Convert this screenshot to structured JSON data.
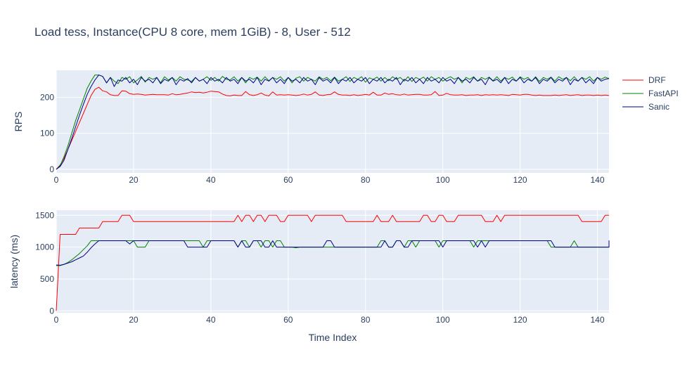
{
  "chart_data": {
    "type": "line",
    "title": "Load tess, Instance(CPU 8 core, mem 1GiB) - 8, User - 512",
    "legend": {
      "placement": "right",
      "entries": [
        "DRF",
        "FastAPI",
        "Sanic"
      ]
    },
    "colors": {
      "DRF": "#ff0000",
      "FastAPI": "#008000",
      "Sanic": "#00008b",
      "plot_bg": "#e5ecf6",
      "grid": "#ffffff",
      "text": "#2a3f5f"
    },
    "xlabel": "Time Index",
    "x_range": [
      0,
      143
    ],
    "x_ticks": [
      "0",
      "20",
      "40",
      "60",
      "80",
      "100",
      "120",
      "140"
    ],
    "subplots": [
      {
        "ylabel": "RPS",
        "y_range": [
          -10,
          275
        ],
        "y_ticks": [
          "0",
          "100",
          "200"
        ],
        "series": [
          {
            "name": "DRF",
            "values": [
              0,
              12,
              30,
              55,
              80,
              105,
              130,
              155,
              180,
              205,
              222,
              228,
              218,
              215,
              207,
              205,
              205,
              218,
              217,
              210,
              208,
              209,
              208,
              206,
              207,
              208,
              207,
              207,
              207,
              206,
              210,
              207,
              208,
              210,
              212,
              215,
              213,
              214,
              212,
              214,
              217,
              216,
              215,
              209,
              205,
              204,
              206,
              205,
              205,
              216,
              207,
              205,
              207,
              212,
              206,
              204,
              215,
              206,
              207,
              206,
              207,
              206,
              205,
              206,
              209,
              206,
              208,
              215,
              206,
              205,
              207,
              208,
              215,
              208,
              206,
              206,
              205,
              207,
              205,
              206,
              208,
              206,
              214,
              206,
              206,
              212,
              208,
              210,
              207,
              206,
              209,
              206,
              207,
              208,
              208,
              206,
              206,
              207,
              216,
              205,
              206,
              211,
              207,
              206,
              206,
              207,
              205,
              206,
              206,
              207,
              205,
              207,
              206,
              207,
              206,
              207,
              206,
              205,
              208,
              207,
              206,
              208,
              208,
              206,
              205,
              206,
              205,
              205,
              205,
              206,
              205,
              206,
              207,
              205,
              206,
              207,
              205,
              206,
              206,
              205,
              206,
              205,
              206,
              205
            ]
          },
          {
            "name": "FastAPI",
            "values": [
              0,
              10,
              35,
              65,
              100,
              135,
              165,
              195,
              225,
              245,
              262,
              262,
              258,
              240,
              255,
              245,
              238,
              255,
              250,
              257,
              240,
              248,
              258,
              242,
              255,
              250,
              255,
              240,
              257,
              248,
              255,
              245,
              257,
              250,
              248,
              244,
              255,
              245,
              250,
              257,
              247,
              255,
              245,
              258,
              250,
              248,
              257,
              245,
              255,
              240,
              255,
              250,
              256,
              245,
              257,
              246,
              255,
              250,
              257,
              245,
              255,
              240,
              253,
              257,
              245,
              255,
              250,
              245,
              257,
              250,
              255,
              246,
              256,
              245,
              250,
              257,
              244,
              255,
              250,
              257,
              242,
              254,
              250,
              256,
              245,
              255,
              246,
              257,
              250,
              255,
              245,
              257,
              244,
              255,
              250,
              256,
              245,
              257,
              250,
              255,
              245,
              252,
              257,
              250,
              255,
              240,
              255,
              250,
              257,
              245,
              255,
              250,
              256,
              246,
              257,
              245,
              255,
              250,
              256,
              245,
              257,
              250,
              255,
              245,
              257,
              244,
              255,
              250,
              256,
              245,
              257,
              250,
              255,
              246,
              257,
              245,
              255,
              250,
              257,
              245,
              255,
              250,
              256,
              252
            ]
          },
          {
            "name": "Sanic",
            "values": [
              0,
              8,
              25,
              55,
              85,
              118,
              150,
              180,
              208,
              230,
              248,
              262,
              258,
              240,
              255,
              230,
              248,
              245,
              255,
              240,
              250,
              235,
              255,
              245,
              250,
              240,
              255,
              238,
              250,
              245,
              255,
              235,
              250,
              245,
              252,
              240,
              255,
              245,
              250,
              238,
              255,
              245,
              250,
              240,
              255,
              245,
              250,
              238,
              255,
              245,
              250,
              240,
              255,
              235,
              250,
              245,
              255,
              240,
              250,
              238,
              255,
              245,
              250,
              240,
              255,
              245,
              250,
              235,
              255,
              245,
              250,
              240,
              255,
              238,
              250,
              245,
              255,
              240,
              250,
              245,
              255,
              238,
              250,
              245,
              255,
              240,
              250,
              245,
              255,
              235,
              250,
              245,
              255,
              240,
              250,
              238,
              255,
              245,
              250,
              240,
              255,
              245,
              250,
              238,
              255,
              245,
              250,
              240,
              255,
              245,
              250,
              235,
              255,
              245,
              250,
              240,
              255,
              238,
              250,
              245,
              255,
              240,
              250,
              245,
              255,
              238,
              250,
              245,
              255,
              240,
              250,
              245,
              255,
              235,
              250,
              245,
              255,
              240,
              250,
              238,
              255,
              245,
              250,
              252
            ]
          }
        ]
      },
      {
        "ylabel": "latency (ms)",
        "y_range": [
          -30,
          1580
        ],
        "y_ticks": [
          "0",
          "500",
          "1000",
          "1500"
        ],
        "series": [
          {
            "name": "DRF",
            "values": [
              0,
              1200,
              1200,
              1200,
              1200,
              1200,
              1300,
              1300,
              1300,
              1300,
              1300,
              1300,
              1400,
              1400,
              1400,
              1400,
              1400,
              1500,
              1500,
              1500,
              1400,
              1400,
              1400,
              1400,
              1400,
              1400,
              1400,
              1400,
              1400,
              1400,
              1400,
              1400,
              1400,
              1400,
              1400,
              1400,
              1400,
              1400,
              1400,
              1400,
              1400,
              1400,
              1400,
              1400,
              1400,
              1400,
              1400,
              1500,
              1400,
              1500,
              1500,
              1400,
              1500,
              1500,
              1400,
              1500,
              1500,
              1500,
              1400,
              1400,
              1500,
              1500,
              1500,
              1500,
              1500,
              1500,
              1400,
              1500,
              1500,
              1500,
              1500,
              1500,
              1500,
              1500,
              1500,
              1400,
              1400,
              1400,
              1400,
              1400,
              1400,
              1400,
              1400,
              1500,
              1400,
              1400,
              1400,
              1500,
              1400,
              1400,
              1400,
              1400,
              1400,
              1400,
              1400,
              1500,
              1500,
              1400,
              1400,
              1500,
              1500,
              1400,
              1400,
              1400,
              1500,
              1500,
              1500,
              1500,
              1500,
              1500,
              1500,
              1400,
              1400,
              1400,
              1500,
              1400,
              1500,
              1500,
              1500,
              1500,
              1500,
              1500,
              1500,
              1500,
              1500,
              1500,
              1500,
              1500,
              1500,
              1500,
              1500,
              1500,
              1500,
              1500,
              1500,
              1500,
              1400,
              1400,
              1400,
              1400,
              1400,
              1400,
              1500,
              1500,
              1500,
              1500
            ]
          },
          {
            "name": "FastAPI",
            "values": [
              710,
              710,
              730,
              760,
              800,
              850,
              900,
              960,
              1020,
              1100,
              1100,
              1100,
              1100,
              1100,
              1100,
              1100,
              1100,
              1100,
              1100,
              1100,
              1100,
              1000,
              1000,
              1000,
              1100,
              1100,
              1100,
              1100,
              1100,
              1100,
              1100,
              1100,
              1100,
              1100,
              1100,
              1100,
              1100,
              1100,
              1000,
              1100,
              1100,
              1100,
              1100,
              1100,
              1100,
              1100,
              1100,
              1000,
              1100,
              1100,
              1000,
              1100,
              1100,
              1000,
              1100,
              1100,
              1000,
              1100,
              1100,
              1000,
              1000,
              1000,
              990,
              1000,
              1000,
              1000,
              1000,
              1000,
              1000,
              1000,
              1000,
              1000,
              1000,
              1000,
              1000,
              1000,
              1000,
              1000,
              1000,
              1000,
              1000,
              1000,
              1000,
              1000,
              1100,
              1100,
              1000,
              1000,
              1100,
              1100,
              1000,
              1100,
              1100,
              1000,
              1100,
              1100,
              1100,
              1100,
              1100,
              1000,
              1100,
              1100,
              1100,
              1100,
              1100,
              1100,
              1100,
              1100,
              1000,
              1100,
              1100,
              1100,
              1100,
              1100,
              1100,
              1100,
              1100,
              1100,
              1100,
              1100,
              1100,
              1100,
              1100,
              1100,
              1100,
              1100,
              1100,
              1100,
              1000,
              1000,
              1000,
              1000,
              1000,
              1000,
              1100,
              1000,
              1000,
              1000,
              1000,
              1000,
              1000,
              1000,
              1000,
              1000,
              1000,
              1000,
              1100,
              1100
            ]
          },
          {
            "name": "Sanic",
            "values": [
              720,
              715,
              730,
              750,
              770,
              800,
              830,
              860,
              920,
              990,
              1050,
              1100,
              1100,
              1100,
              1100,
              1100,
              1100,
              1100,
              1100,
              1050,
              1100,
              1100,
              1100,
              1100,
              1100,
              1100,
              1100,
              1100,
              1100,
              1100,
              1100,
              1100,
              1100,
              1100,
              1000,
              1000,
              1000,
              1000,
              1000,
              1000,
              1100,
              1100,
              1100,
              1100,
              1100,
              1100,
              1100,
              1000,
              1100,
              1000,
              1000,
              1100,
              1100,
              1100,
              1000,
              1000,
              1100,
              1000,
              1000,
              1000,
              1000,
              1000,
              1000,
              1000,
              1000,
              1000,
              1000,
              1000,
              1000,
              1000,
              1100,
              1100,
              1000,
              1000,
              1000,
              1000,
              1000,
              1000,
              1000,
              1000,
              1000,
              1000,
              1000,
              1000,
              1000,
              1100,
              1000,
              1000,
              1100,
              1100,
              1000,
              1000,
              1100,
              1100,
              1100,
              1100,
              1100,
              1100,
              1100,
              1100,
              1000,
              1100,
              1100,
              1100,
              1100,
              1100,
              1100,
              1100,
              1100,
              1000,
              1100,
              1000,
              1100,
              1100,
              1100,
              1100,
              1100,
              1100,
              1100,
              1100,
              1100,
              1100,
              1100,
              1100,
              1100,
              1100,
              1100,
              1100,
              1100,
              1000,
              1000,
              1000,
              1000,
              1000,
              1000,
              1000,
              1000,
              1000,
              1000,
              1000,
              1000,
              1000,
              1000,
              1000,
              1000,
              1100,
              1100,
              1100,
              1100,
              1000,
              1000,
              1000,
              1000,
              1000
            ]
          }
        ]
      }
    ]
  }
}
